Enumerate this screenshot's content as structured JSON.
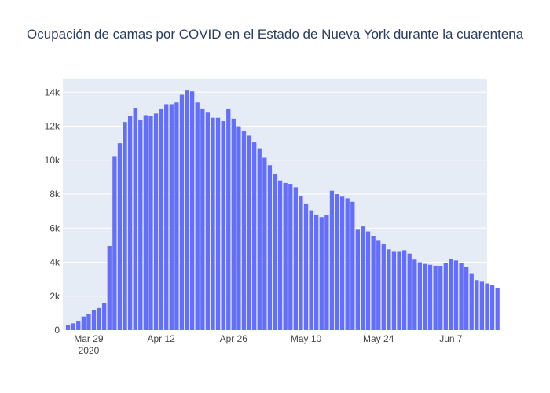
{
  "chart_data": {
    "type": "bar",
    "title": "Ocupación de camas por COVID en el Estado de Nueva York durante la cuarentena",
    "xlabel": "",
    "ylabel": "",
    "ylim": [
      0,
      14800
    ],
    "yticks": [
      0,
      2000,
      4000,
      6000,
      8000,
      10000,
      12000,
      14000
    ],
    "ytick_labels": [
      "0",
      "2k",
      "4k",
      "6k",
      "8k",
      "10k",
      "12k",
      "14k"
    ],
    "x_start": "2020-03-25",
    "x_range": [
      "2020-03-24",
      "2020-06-14"
    ],
    "xticks": [
      {
        "date": "2020-03-29",
        "label": "Mar 29",
        "sublabel": "2020"
      },
      {
        "date": "2020-04-12",
        "label": "Apr 12",
        "sublabel": ""
      },
      {
        "date": "2020-04-26",
        "label": "Apr 26",
        "sublabel": ""
      },
      {
        "date": "2020-05-10",
        "label": "May 10",
        "sublabel": ""
      },
      {
        "date": "2020-05-24",
        "label": "May 24",
        "sublabel": ""
      },
      {
        "date": "2020-06-07",
        "label": "Jun 7",
        "sublabel": ""
      }
    ],
    "grid": true,
    "bar_color": "#636efa",
    "plot_bg": "#e5ecf6",
    "values": [
      300,
      400,
      550,
      800,
      950,
      1200,
      1300,
      1600,
      4950,
      10200,
      11000,
      12250,
      12600,
      13050,
      12350,
      12650,
      12600,
      12750,
      13000,
      13300,
      13300,
      13400,
      13850,
      14100,
      14050,
      13400,
      13000,
      12800,
      12500,
      12500,
      12300,
      13000,
      12450,
      12000,
      11700,
      11450,
      11050,
      10700,
      10150,
      9700,
      9200,
      8800,
      8650,
      8600,
      8400,
      7900,
      7450,
      7050,
      6800,
      6650,
      6750,
      8200,
      8000,
      7850,
      7750,
      7550,
      5950,
      6100,
      5800,
      5550,
      5300,
      5050,
      4750,
      4650,
      4650,
      4700,
      4500,
      4150,
      4000,
      3900,
      3850,
      3800,
      3750,
      3950,
      4200,
      4100,
      3950,
      3700,
      3350,
      2950,
      2850,
      2750,
      2650,
      2500
    ]
  }
}
